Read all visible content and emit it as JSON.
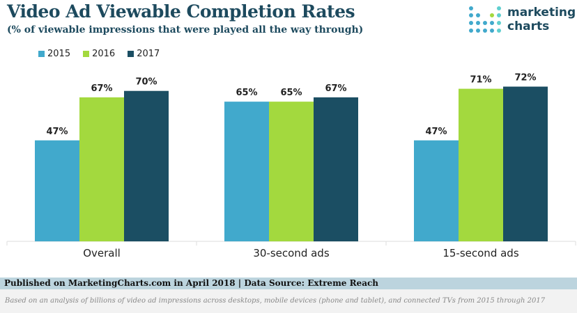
{
  "title": "Video Ad Viewable Completion Rates",
  "subtitle": "(% of viewable impressions that were played all the way through)",
  "logo": {
    "line1": "marketing",
    "line2": "charts"
  },
  "footer": {
    "source": "Published on MarketingCharts.com in April 2018 | Data Source: Extreme Reach",
    "note": "Based on an analysis of billions of video ad impressions across desktops, mobile devices (phone and tablet), and connected TVs from 2015 through 2017"
  },
  "chart_data": {
    "type": "bar",
    "categories": [
      "Overall",
      "30-second ads",
      "15-second ads"
    ],
    "series": [
      {
        "name": "2015",
        "values": [
          47,
          65,
          47
        ],
        "labels": [
          "47%",
          "65%",
          "47%"
        ],
        "color": "#41a9cc"
      },
      {
        "name": "2016",
        "values": [
          67,
          65,
          71
        ],
        "labels": [
          "67%",
          "65%",
          "71%"
        ],
        "color": "#a3d93e"
      },
      {
        "name": "2017",
        "values": [
          70,
          67,
          72
        ],
        "labels": [
          "70%",
          "67%",
          "72%"
        ],
        "color": "#1b4e63"
      }
    ],
    "ylim": [
      0,
      100
    ],
    "grid": false,
    "legend": "top-left"
  }
}
